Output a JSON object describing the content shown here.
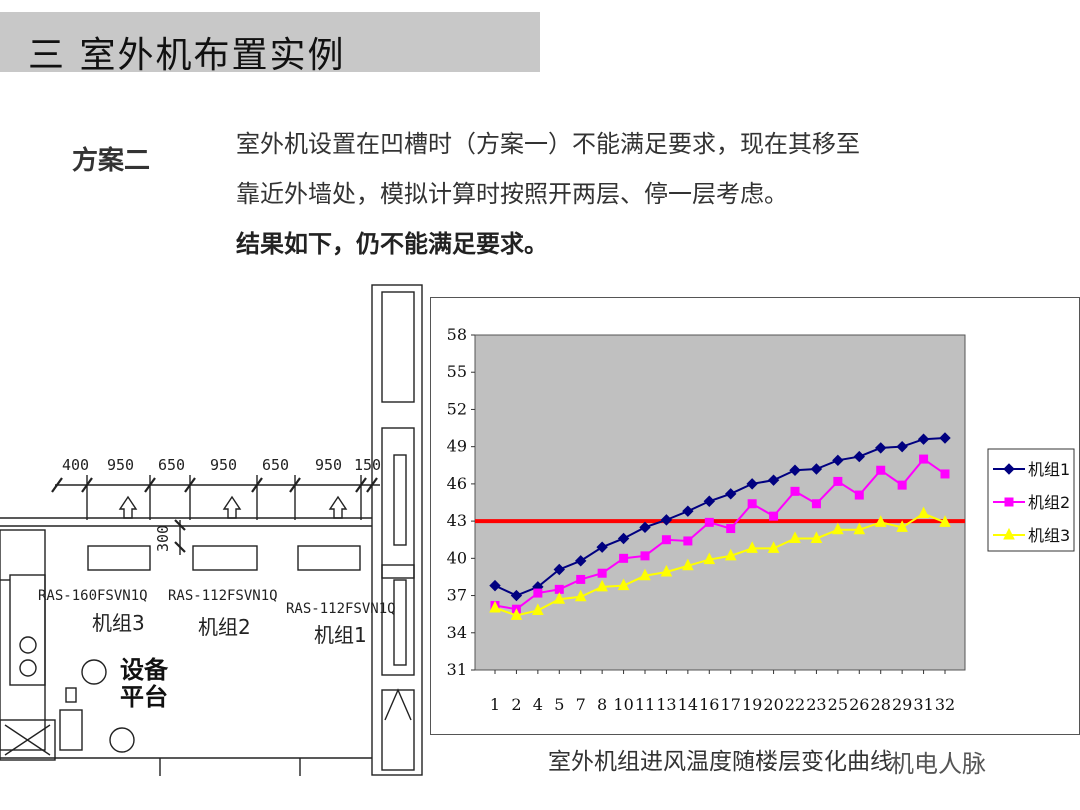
{
  "slide": {
    "title": "三  室外机布置实例",
    "plan_label": "方案二",
    "lines": [
      "室外机设置在凹槽时（方案一）不能满足要求，现在其移至",
      "靠近外墙处，模拟计算时按照开两层、停一层考虑。",
      "结果如下，仍不能满足要求。"
    ],
    "caption": "室外机组进风温度随楼层变化曲线",
    "watermark": "机电人脉"
  },
  "drawing": {
    "dimensions": [
      "400",
      "950",
      "650",
      "950",
      "650",
      "950",
      "150"
    ],
    "gap_dimension": "300",
    "models": [
      "RAS-160FSVN1Q",
      "RAS-112FSVN1Q",
      "RAS-112FSVN1Q"
    ],
    "units": [
      "机组3",
      "机组2",
      "机组1"
    ],
    "platform": [
      "设备",
      "平台"
    ]
  },
  "chart_data": {
    "type": "line",
    "x": [
      "1",
      "2",
      "4",
      "5",
      "7",
      "8",
      "10",
      "11",
      "13",
      "14",
      "16",
      "17",
      "19",
      "20",
      "22",
      "23",
      "25",
      "26",
      "28",
      "29",
      "31",
      "32"
    ],
    "ylim": [
      31,
      58
    ],
    "yticks": [
      31,
      34,
      37,
      40,
      43,
      46,
      49,
      52,
      55,
      58
    ],
    "threshold": 43,
    "plot_background": "#c0c0c0",
    "threshold_color": "#ff0000",
    "series": [
      {
        "name": "机组1",
        "color": "#000080",
        "marker": "diamond",
        "values": [
          37.8,
          37.0,
          37.7,
          39.1,
          39.8,
          40.9,
          41.6,
          42.5,
          43.1,
          43.8,
          44.6,
          45.2,
          46.0,
          46.3,
          47.1,
          47.2,
          47.9,
          48.2,
          48.9,
          49.0,
          49.6,
          49.7
        ]
      },
      {
        "name": "机组2",
        "color": "#ff00ff",
        "marker": "square",
        "values": [
          36.2,
          35.9,
          37.2,
          37.5,
          38.3,
          38.8,
          40.0,
          40.2,
          41.5,
          41.4,
          42.9,
          42.4,
          44.4,
          43.4,
          45.4,
          44.4,
          46.2,
          45.1,
          47.1,
          45.9,
          48.0,
          46.8
        ]
      },
      {
        "name": "机组3",
        "color": "#ffff00",
        "marker": "triangle",
        "values": [
          36.0,
          35.4,
          35.8,
          36.7,
          36.9,
          37.7,
          37.8,
          38.6,
          38.9,
          39.4,
          39.9,
          40.2,
          40.8,
          40.8,
          41.6,
          41.6,
          42.3,
          42.3,
          42.9,
          42.5,
          43.6,
          42.9
        ]
      }
    ]
  }
}
